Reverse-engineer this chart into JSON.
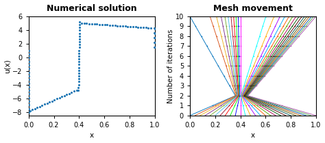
{
  "left_title": "Numerical solution",
  "left_xlabel": "x",
  "left_ylabel": "u(x)",
  "left_ylim": [
    -8.5,
    6
  ],
  "left_xlim": [
    0,
    1
  ],
  "left_yticks": [
    -8,
    -6,
    -4,
    -2,
    0,
    2,
    4,
    6
  ],
  "left_xticks": [
    0,
    0.2,
    0.4,
    0.6,
    0.8,
    1
  ],
  "right_title": "Mesh movement",
  "right_xlabel": "x",
  "right_ylabel": "Number of iterations",
  "right_ylim": [
    0,
    10
  ],
  "right_xlim": [
    0,
    1
  ],
  "right_yticks": [
    0,
    1,
    2,
    3,
    4,
    5,
    6,
    7,
    8,
    9,
    10
  ],
  "right_xticks": [
    0,
    0.2,
    0.4,
    0.6,
    0.8,
    1
  ],
  "dot_color": "#1f77b4",
  "bg_color": "#ffffff",
  "title_fontsize": 9,
  "label_fontsize": 7.5,
  "tick_fontsize": 7
}
